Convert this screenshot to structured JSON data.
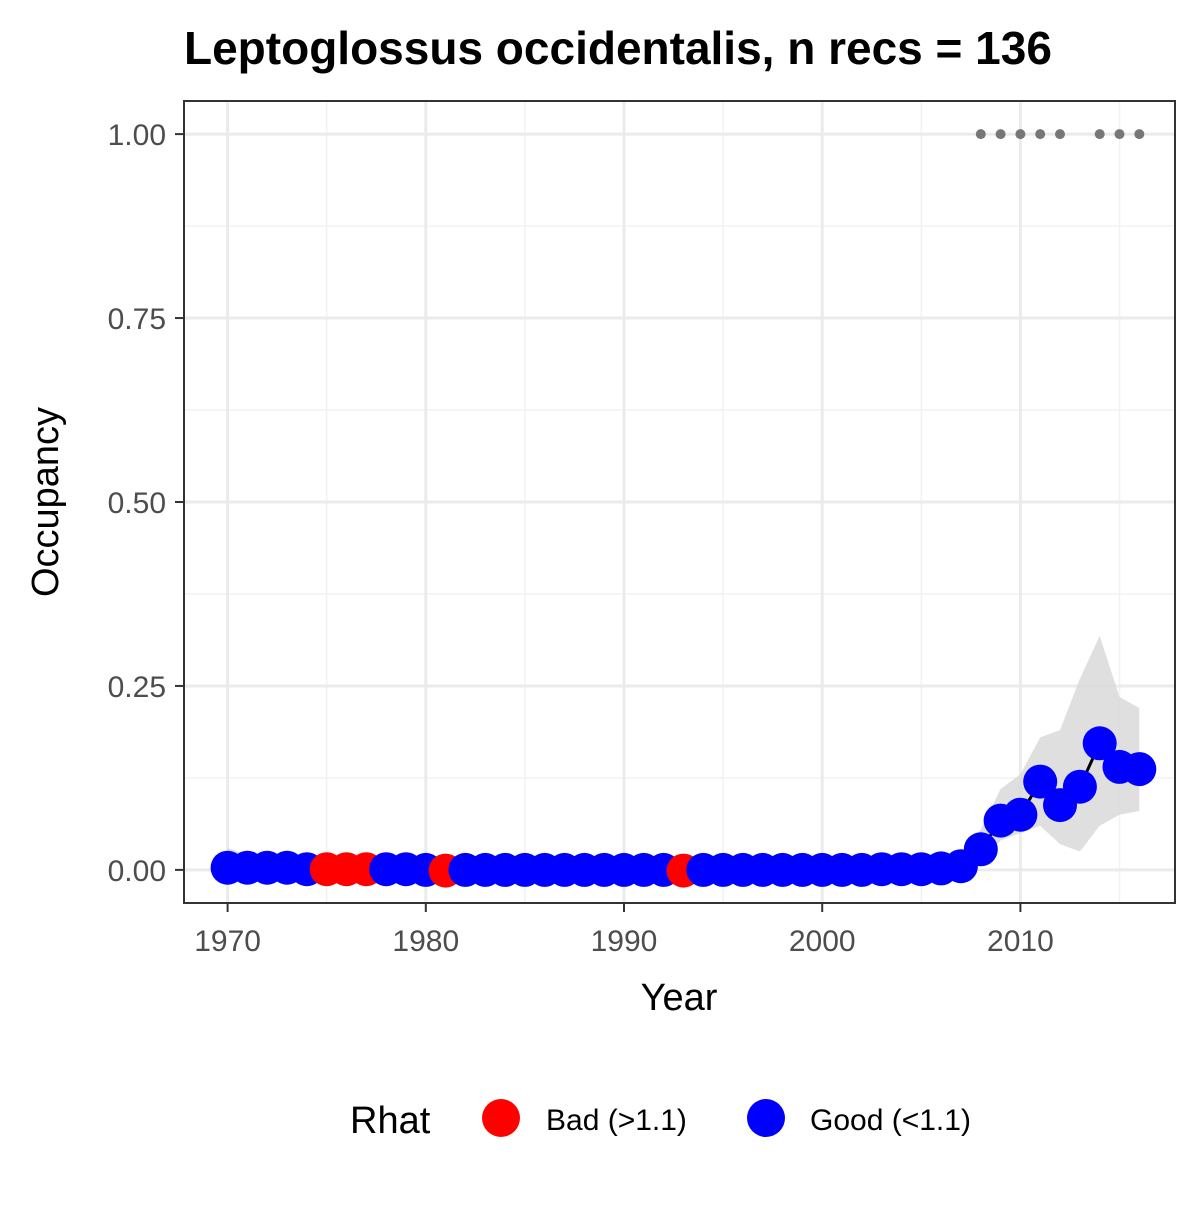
{
  "chart_data": {
    "type": "line",
    "title": "Leptoglossus occidentalis, n recs = 136",
    "xlabel": "Year",
    "ylabel": "Occupancy",
    "xlim": [
      1967.8,
      2017.8
    ],
    "ylim": [
      -0.045,
      1.045
    ],
    "x_ticks": [
      1970,
      1980,
      1990,
      2000,
      2010
    ],
    "x_tick_labels": [
      "1970",
      "1980",
      "1990",
      "2000",
      "2010"
    ],
    "y_ticks": [
      0,
      0.25,
      0.5,
      0.75,
      1.0
    ],
    "y_tick_labels": [
      "0.00",
      "0.25",
      "0.50",
      "0.75",
      "1.00"
    ],
    "grid": true,
    "legend": {
      "title": "Rhat",
      "position": "bottom",
      "entries": [
        {
          "key": "bad",
          "label": "Bad (>1.1)",
          "color": "#ff0000"
        },
        {
          "key": "good",
          "label": "Good (<1.1)",
          "color": "#0000ff"
        }
      ]
    },
    "colors": {
      "bad": "#ff0000",
      "good": "#0000ff",
      "ribbon": "#d9d9d9",
      "line": "#000000",
      "record_dot": "#777777"
    },
    "points": [
      {
        "x": 1970,
        "y": 0.003,
        "lo": 0.0,
        "hi": 0.03,
        "rhat": "good"
      },
      {
        "x": 1971,
        "y": 0.003,
        "lo": 0.0,
        "hi": 0.02,
        "rhat": "good"
      },
      {
        "x": 1972,
        "y": 0.003,
        "lo": 0.0,
        "hi": 0.015,
        "rhat": "good"
      },
      {
        "x": 1973,
        "y": 0.003,
        "lo": 0.0,
        "hi": 0.012,
        "rhat": "good"
      },
      {
        "x": 1974,
        "y": 0.001,
        "lo": 0.0,
        "hi": 0.01,
        "rhat": "good"
      },
      {
        "x": 1975,
        "y": 0.001,
        "lo": 0.0,
        "hi": 0.01,
        "rhat": "bad"
      },
      {
        "x": 1976,
        "y": 0.001,
        "lo": 0.0,
        "hi": 0.01,
        "rhat": "bad"
      },
      {
        "x": 1977,
        "y": 0.001,
        "lo": 0.0,
        "hi": 0.01,
        "rhat": "bad"
      },
      {
        "x": 1978,
        "y": 0.001,
        "lo": 0.0,
        "hi": 0.01,
        "rhat": "good"
      },
      {
        "x": 1979,
        "y": 0.001,
        "lo": 0.0,
        "hi": 0.01,
        "rhat": "good"
      },
      {
        "x": 1980,
        "y": 0.0,
        "lo": 0.0,
        "hi": 0.01,
        "rhat": "good"
      },
      {
        "x": 1981,
        "y": -0.001,
        "lo": 0.0,
        "hi": 0.008,
        "rhat": "bad"
      },
      {
        "x": 1982,
        "y": 0.0,
        "lo": 0.0,
        "hi": 0.008,
        "rhat": "good"
      },
      {
        "x": 1983,
        "y": 0.0,
        "lo": 0.0,
        "hi": 0.008,
        "rhat": "good"
      },
      {
        "x": 1984,
        "y": 0.0,
        "lo": 0.0,
        "hi": 0.008,
        "rhat": "good"
      },
      {
        "x": 1985,
        "y": 0.0,
        "lo": 0.0,
        "hi": 0.008,
        "rhat": "good"
      },
      {
        "x": 1986,
        "y": 0.0,
        "lo": 0.0,
        "hi": 0.008,
        "rhat": "good"
      },
      {
        "x": 1987,
        "y": 0.0,
        "lo": 0.0,
        "hi": 0.008,
        "rhat": "good"
      },
      {
        "x": 1988,
        "y": 0.0,
        "lo": 0.0,
        "hi": 0.008,
        "rhat": "good"
      },
      {
        "x": 1989,
        "y": 0.0,
        "lo": 0.0,
        "hi": 0.008,
        "rhat": "good"
      },
      {
        "x": 1990,
        "y": 0.0,
        "lo": 0.0,
        "hi": 0.008,
        "rhat": "good"
      },
      {
        "x": 1991,
        "y": 0.0,
        "lo": 0.0,
        "hi": 0.008,
        "rhat": "good"
      },
      {
        "x": 1992,
        "y": 0.0,
        "lo": 0.0,
        "hi": 0.008,
        "rhat": "good"
      },
      {
        "x": 1993,
        "y": -0.001,
        "lo": 0.0,
        "hi": 0.008,
        "rhat": "bad"
      },
      {
        "x": 1994,
        "y": 0.0,
        "lo": 0.0,
        "hi": 0.008,
        "rhat": "good"
      },
      {
        "x": 1995,
        "y": 0.0,
        "lo": 0.0,
        "hi": 0.008,
        "rhat": "good"
      },
      {
        "x": 1996,
        "y": 0.0,
        "lo": 0.0,
        "hi": 0.008,
        "rhat": "good"
      },
      {
        "x": 1997,
        "y": 0.0,
        "lo": 0.0,
        "hi": 0.008,
        "rhat": "good"
      },
      {
        "x": 1998,
        "y": 0.0,
        "lo": 0.0,
        "hi": 0.008,
        "rhat": "good"
      },
      {
        "x": 1999,
        "y": 0.0,
        "lo": 0.0,
        "hi": 0.008,
        "rhat": "good"
      },
      {
        "x": 2000,
        "y": 0.0,
        "lo": 0.0,
        "hi": 0.008,
        "rhat": "good"
      },
      {
        "x": 2001,
        "y": 0.0,
        "lo": 0.0,
        "hi": 0.008,
        "rhat": "good"
      },
      {
        "x": 2002,
        "y": 0.0,
        "lo": 0.0,
        "hi": 0.008,
        "rhat": "good"
      },
      {
        "x": 2003,
        "y": 0.001,
        "lo": 0.0,
        "hi": 0.008,
        "rhat": "good"
      },
      {
        "x": 2004,
        "y": 0.001,
        "lo": 0.0,
        "hi": 0.008,
        "rhat": "good"
      },
      {
        "x": 2005,
        "y": 0.001,
        "lo": 0.0,
        "hi": 0.008,
        "rhat": "good"
      },
      {
        "x": 2006,
        "y": 0.002,
        "lo": 0.0,
        "hi": 0.01,
        "rhat": "good"
      },
      {
        "x": 2007,
        "y": 0.005,
        "lo": 0.0,
        "hi": 0.02,
        "rhat": "good"
      },
      {
        "x": 2008,
        "y": 0.028,
        "lo": 0.01,
        "hi": 0.055,
        "rhat": "good"
      },
      {
        "x": 2009,
        "y": 0.067,
        "lo": 0.04,
        "hi": 0.11,
        "rhat": "good"
      },
      {
        "x": 2010,
        "y": 0.075,
        "lo": 0.05,
        "hi": 0.13,
        "rhat": "good"
      },
      {
        "x": 2011,
        "y": 0.12,
        "lo": 0.06,
        "hi": 0.18,
        "rhat": "good"
      },
      {
        "x": 2012,
        "y": 0.088,
        "lo": 0.035,
        "hi": 0.19,
        "rhat": "good"
      },
      {
        "x": 2013,
        "y": 0.113,
        "lo": 0.025,
        "hi": 0.26,
        "rhat": "good"
      },
      {
        "x": 2014,
        "y": 0.172,
        "lo": 0.06,
        "hi": 0.318,
        "rhat": "good"
      },
      {
        "x": 2015,
        "y": 0.14,
        "lo": 0.075,
        "hi": 0.235,
        "rhat": "good"
      },
      {
        "x": 2016,
        "y": 0.137,
        "lo": 0.08,
        "hi": 0.22,
        "rhat": "good"
      }
    ],
    "records_y": 1.0,
    "record_years": [
      2008,
      2009,
      2010,
      2011,
      2012,
      2014,
      2015,
      2016
    ]
  }
}
